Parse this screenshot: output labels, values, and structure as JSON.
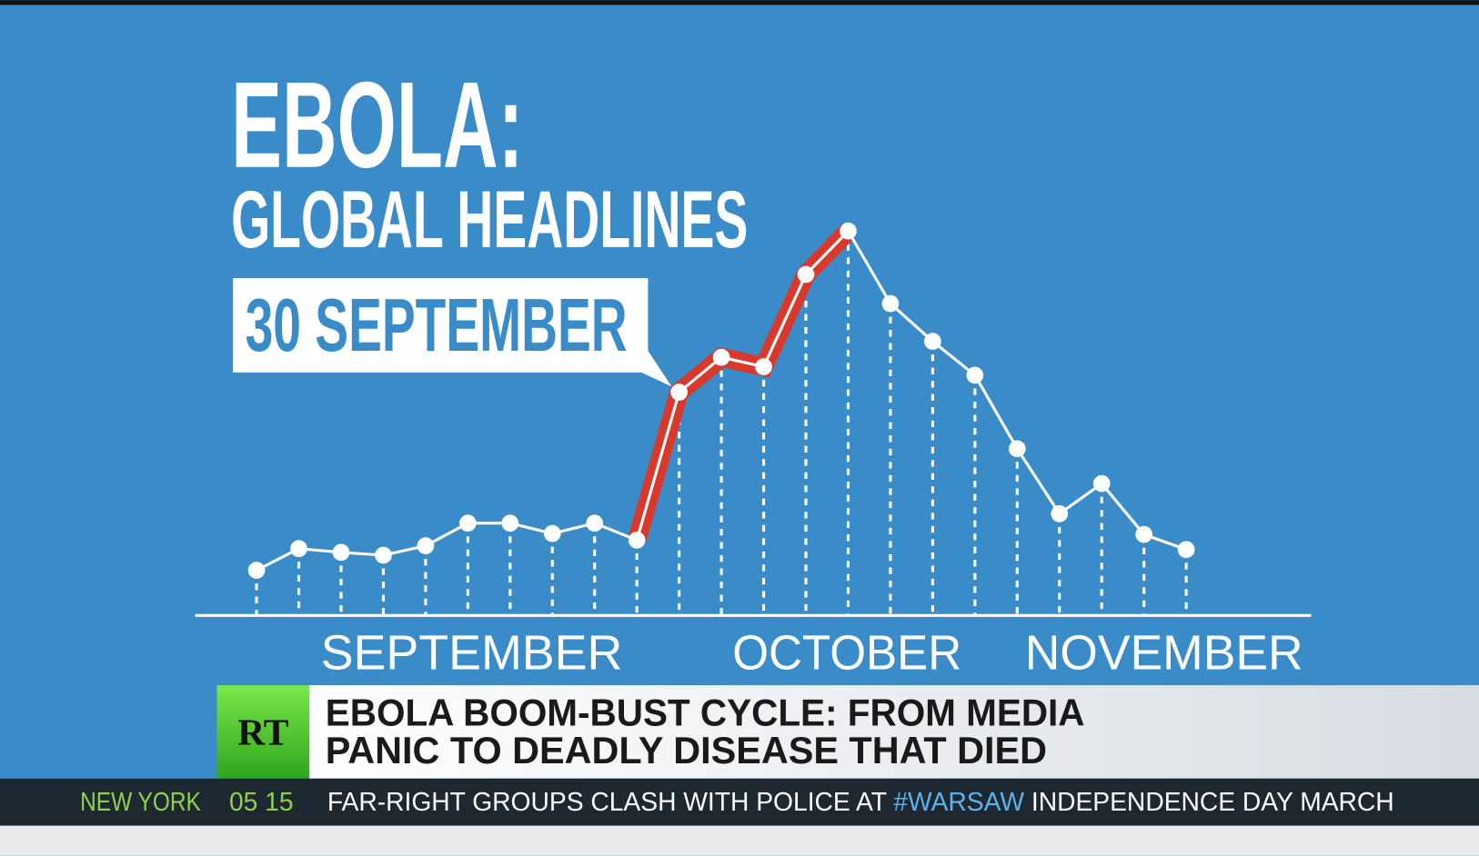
{
  "chart_data": {
    "type": "line",
    "title": "EBOLA:",
    "subtitle": "GLOBAL HEADLINES",
    "annotation": "30 SEPTEMBER",
    "x_axis_labels": [
      "SEPTEMBER",
      "OCTOBER",
      "NOVEMBER"
    ],
    "categories": [
      null,
      null,
      null,
      null,
      null,
      null,
      null,
      null,
      null,
      null,
      null,
      null,
      null,
      null,
      null,
      null,
      null,
      null,
      null,
      null,
      null,
      null,
      null
    ],
    "values": [
      48,
      71,
      67,
      64,
      74,
      98,
      98,
      87,
      98,
      80,
      237,
      274,
      264,
      362,
      408,
      331,
      291,
      255,
      177,
      108,
      140,
      86,
      70
    ],
    "color": "#ffffff",
    "highlight": {
      "start": 9,
      "end": 14,
      "color": "#d8392b"
    },
    "ylim": [
      0,
      420
    ]
  },
  "lower_third": {
    "logo": "RT",
    "headline": [
      "EBOLA BOOM-BUST CYCLE: FROM MEDIA",
      "PANIC TO DEADLY DISEASE THAT DIED"
    ]
  },
  "ticker": {
    "city": "NEW YORK",
    "time": "05 15",
    "text": [
      "FAR-RIGHT GROUPS CLASH WITH POLICE AT ",
      "#WARSAW",
      " INDEPENDENCE DAY MARCH"
    ]
  }
}
